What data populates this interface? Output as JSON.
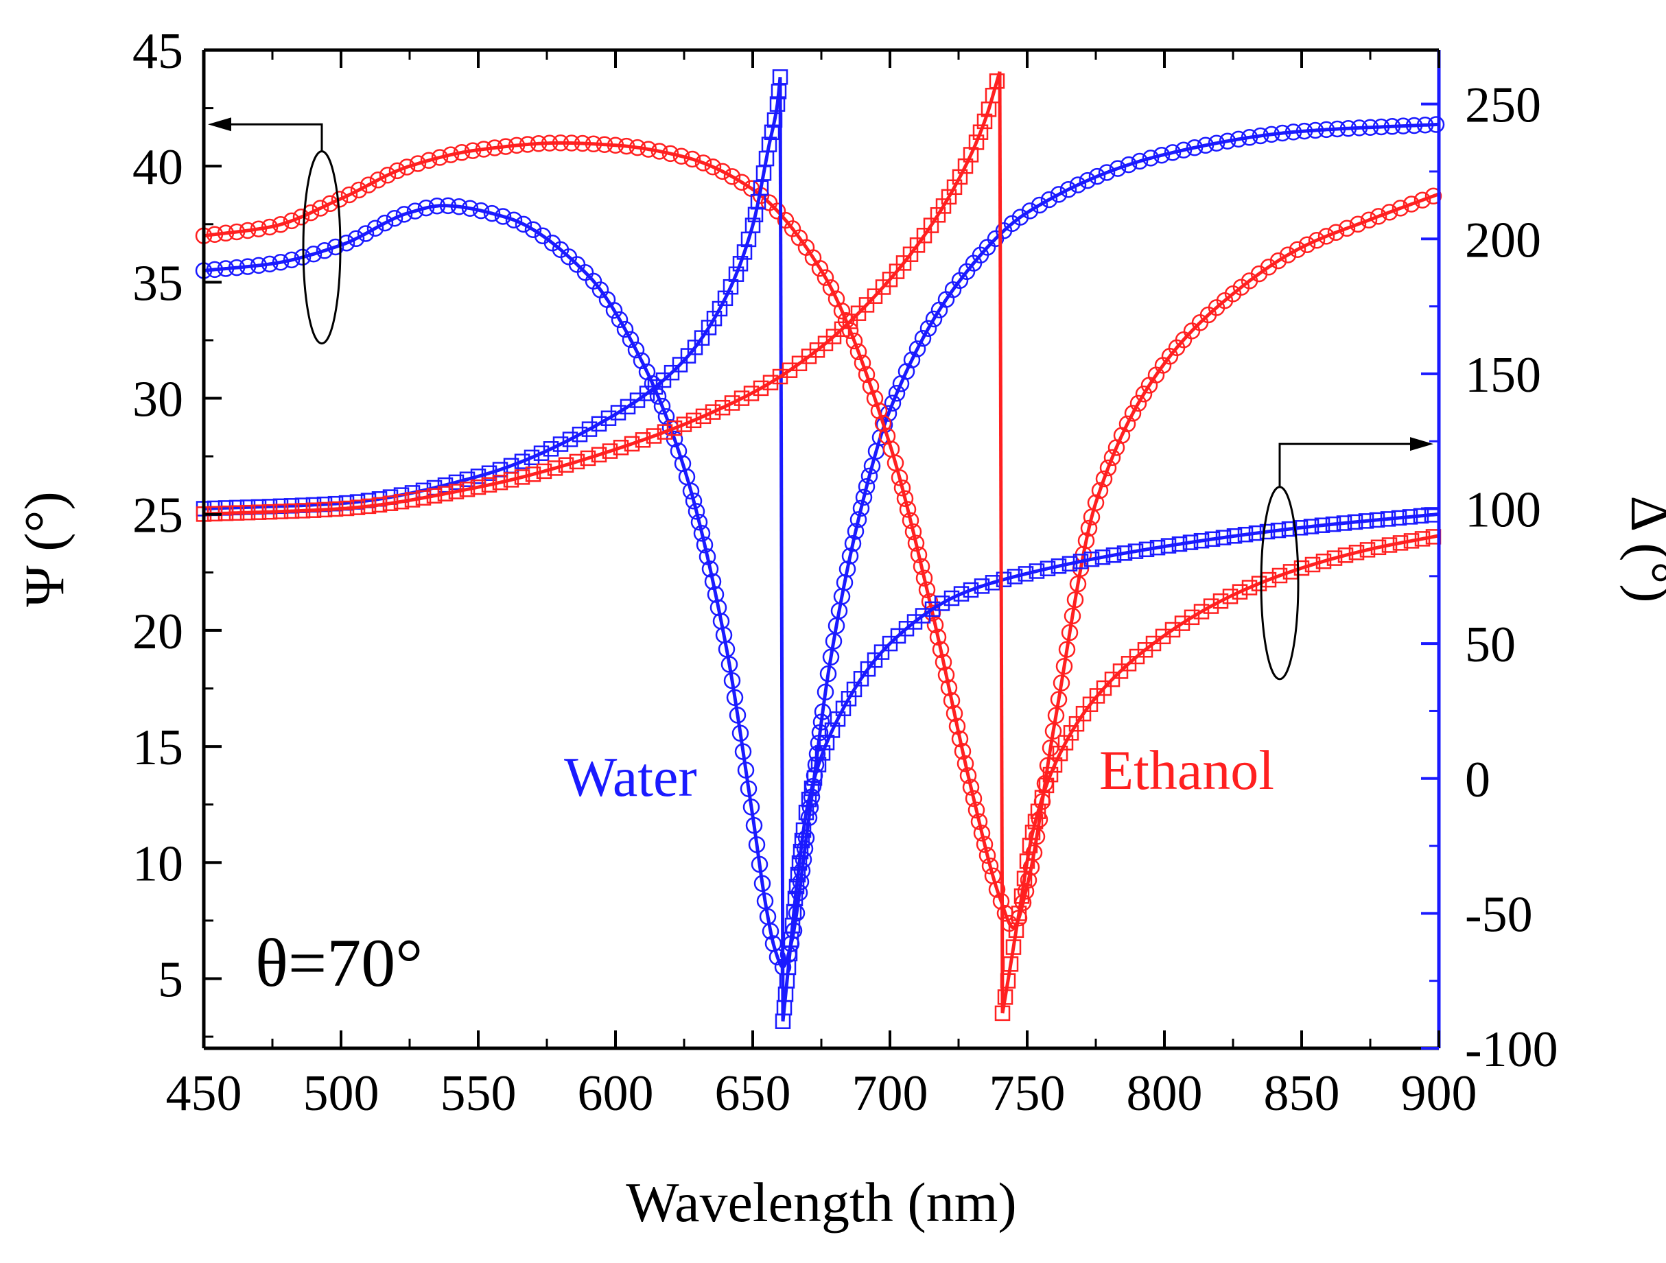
{
  "chart_data": {
    "type": "line",
    "xlabel": "Wavelength (nm)",
    "ylabel_left": "Ψ (°)",
    "ylabel_right": "Δ (°)",
    "xlim": [
      450,
      900
    ],
    "ylim_left": [
      2,
      45
    ],
    "ylim_right": [
      -100,
      270
    ],
    "x_ticks": [
      "450",
      "500",
      "550",
      "600",
      "650",
      "700",
      "750",
      "800",
      "850",
      "900"
    ],
    "y_left_ticks": [
      "5",
      "10",
      "15",
      "20",
      "25",
      "30",
      "35",
      "40",
      "45"
    ],
    "y_right_ticks": [
      "-100",
      "-50",
      "0",
      "50",
      "100",
      "150",
      "200",
      "250"
    ],
    "annotation": "θ=70°",
    "grid": false,
    "marker_note": "open circles = measured Ψ, open squares = measured Δ, solid lines = fits",
    "colors": {
      "water": "#1a1aff",
      "ethanol": "#ff2020",
      "axis_right": "#1a1aff",
      "axis": "#000000"
    },
    "series": [
      {
        "name": "Water Ψ",
        "label": "Water",
        "axis": "left",
        "marker": "circle",
        "color": "#1a1aff",
        "x": [
          450,
          475,
          500,
          525,
          537,
          560,
          590,
          610,
          625,
          640,
          650,
          655,
          658,
          661,
          664,
          670,
          678,
          690,
          700,
          725,
          750,
          800,
          850,
          900
        ],
        "y": [
          35.5,
          35.8,
          36.6,
          38.0,
          38.3,
          37.8,
          35.3,
          31.5,
          27.0,
          19.5,
          12.0,
          8.0,
          6.3,
          5.5,
          6.5,
          11.5,
          18.5,
          25.5,
          29.5,
          35.0,
          38.0,
          40.5,
          41.5,
          41.8
        ]
      },
      {
        "name": "Ethanol Ψ",
        "label": "Ethanol",
        "axis": "left",
        "marker": "circle",
        "color": "#ff2020",
        "x": [
          450,
          475,
          500,
          525,
          550,
          580,
          600,
          625,
          650,
          675,
          700,
          715,
          730,
          740,
          745,
          750,
          760,
          775,
          800,
          825,
          850,
          875,
          900
        ],
        "y": [
          37.0,
          37.4,
          38.6,
          40.0,
          40.7,
          41.0,
          40.9,
          40.4,
          39.0,
          35.5,
          28.0,
          21.0,
          13.0,
          8.5,
          7.2,
          9.0,
          16.0,
          25.5,
          31.5,
          34.5,
          36.5,
          37.7,
          38.8
        ]
      },
      {
        "name": "Water Δ",
        "axis": "right",
        "marker": "square",
        "color": "#1a1aff",
        "x": [
          450,
          500,
          550,
          600,
          625,
          640,
          650,
          656,
          659,
          660,
          661,
          663,
          666,
          670,
          680,
          700,
          725,
          750,
          800,
          850,
          900
        ],
        "y": [
          100,
          102,
          112,
          135,
          155,
          178,
          205,
          235,
          250,
          260,
          -90,
          -70,
          -40,
          -10,
          20,
          50,
          68,
          76,
          86,
          93,
          98
        ]
      },
      {
        "name": "Ethanol Δ",
        "axis": "right",
        "marker": "square",
        "color": "#ff2020",
        "x": [
          450,
          500,
          550,
          600,
          650,
          675,
          700,
          715,
          728,
          735,
          740,
          741,
          743,
          747,
          752,
          760,
          775,
          800,
          825,
          850,
          875,
          900
        ],
        "y": [
          98,
          100,
          108,
          122,
          143,
          160,
          185,
          205,
          228,
          245,
          262,
          -87,
          -75,
          -50,
          -20,
          5,
          30,
          53,
          68,
          78,
          85,
          90
        ]
      }
    ]
  }
}
